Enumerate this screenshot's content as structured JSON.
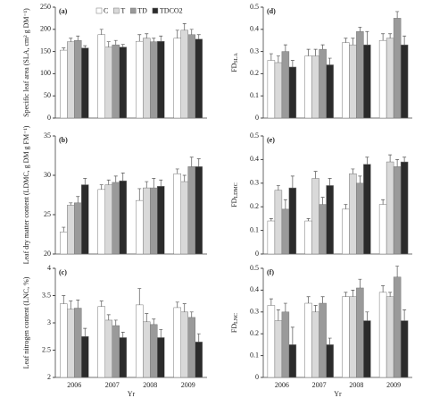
{
  "chart_data": [
    {
      "type": "bar",
      "label": "(a)",
      "ylabel": "Specific leaf area (SLA, cm² g DM⁻¹)",
      "legend": "top",
      "categories": [
        null,
        null,
        null,
        null
      ],
      "series": [
        {
          "name": "C",
          "color": "#ffffff",
          "values": [
            153,
            188,
            173,
            180
          ],
          "errors": [
            5,
            12,
            15,
            18
          ]
        },
        {
          "name": "T",
          "color": "#d9d9d9",
          "values": [
            172,
            160,
            180,
            198
          ],
          "errors": [
            8,
            12,
            10,
            15
          ]
        },
        {
          "name": "TD",
          "color": "#9a9a9a",
          "values": [
            175,
            165,
            172,
            188
          ],
          "errors": [
            10,
            10,
            8,
            12
          ]
        },
        {
          "name": "TDCO2",
          "color": "#2b2b2b",
          "values": [
            158,
            160,
            173,
            178
          ],
          "errors": [
            5,
            6,
            12,
            10
          ]
        }
      ],
      "ylim": [
        0,
        250
      ],
      "yticks": [
        0,
        50,
        100,
        150,
        200,
        250
      ]
    },
    {
      "type": "bar",
      "label": "(d)",
      "ylabel": "FD",
      "ylabel_subscript": "SLA",
      "categories": [
        null,
        null,
        null,
        null
      ],
      "series": [
        {
          "color": "#ffffff",
          "values": [
            0.26,
            0.28,
            0.34,
            0.35
          ],
          "errors": [
            0.03,
            0.03,
            0.02,
            0.03
          ]
        },
        {
          "color": "#d9d9d9",
          "values": [
            0.25,
            0.28,
            0.33,
            0.36
          ],
          "errors": [
            0.03,
            0.03,
            0.03,
            0.02
          ]
        },
        {
          "color": "#9a9a9a",
          "values": [
            0.3,
            0.31,
            0.39,
            0.45
          ],
          "errors": [
            0.03,
            0.02,
            0.02,
            0.03
          ]
        },
        {
          "color": "#2b2b2b",
          "values": [
            0.23,
            0.24,
            0.33,
            0.33
          ],
          "errors": [
            0.03,
            0.03,
            0.06,
            0.04
          ]
        }
      ],
      "ylim": [
        0,
        0.5
      ],
      "yticks": [
        0,
        0.1,
        0.2,
        0.3,
        0.4,
        0.5
      ]
    },
    {
      "type": "bar",
      "label": "(b)",
      "ylabel": "Leaf dry matter content (LDMC, g DM g FM⁻¹)",
      "categories": [
        null,
        null,
        null,
        null
      ],
      "series": [
        {
          "color": "#ffffff",
          "values": [
            22.8,
            28.2,
            26.8,
            30.2
          ],
          "errors": [
            0.6,
            0.6,
            1.5,
            0.6
          ]
        },
        {
          "color": "#d9d9d9",
          "values": [
            26.2,
            28.8,
            28.4,
            29.2
          ],
          "errors": [
            0.3,
            0.6,
            0.8,
            0.8
          ]
        },
        {
          "color": "#9a9a9a",
          "values": [
            26.5,
            29.1,
            28.4,
            31.1
          ],
          "errors": [
            0.8,
            0.8,
            1.2,
            1.2
          ]
        },
        {
          "color": "#2b2b2b",
          "values": [
            28.8,
            29.3,
            28.6,
            31.1
          ],
          "errors": [
            0.8,
            1,
            0.8,
            1
          ]
        }
      ],
      "ylim": [
        20,
        35
      ],
      "yticks": [
        20,
        25,
        30,
        35
      ]
    },
    {
      "type": "bar",
      "label": "(e)",
      "ylabel": "FD",
      "ylabel_subscript": "LDMC",
      "categories": [
        null,
        null,
        null,
        null
      ],
      "series": [
        {
          "color": "#ffffff",
          "values": [
            0.14,
            0.14,
            0.19,
            0.21
          ],
          "errors": [
            0.01,
            0.01,
            0.02,
            0.02
          ]
        },
        {
          "color": "#d9d9d9",
          "values": [
            0.27,
            0.32,
            0.34,
            0.39
          ],
          "errors": [
            0.02,
            0.03,
            0.02,
            0.03
          ]
        },
        {
          "color": "#9a9a9a",
          "values": [
            0.19,
            0.21,
            0.3,
            0.37
          ],
          "errors": [
            0.04,
            0.03,
            0.03,
            0.03
          ]
        },
        {
          "color": "#2b2b2b",
          "values": [
            0.28,
            0.29,
            0.38,
            0.39
          ],
          "errors": [
            0.05,
            0.03,
            0.03,
            0.02
          ]
        }
      ],
      "ylim": [
        0,
        0.5
      ],
      "yticks": [
        0,
        0.1,
        0.2,
        0.3,
        0.4,
        0.5
      ]
    },
    {
      "type": "bar",
      "label": "(c)",
      "ylabel": "Leaf nitrogen content (LNC, %)",
      "xlabel": "Yr",
      "categories": [
        "2006",
        "2007",
        "2008",
        "2009"
      ],
      "series": [
        {
          "color": "#ffffff",
          "values": [
            3.35,
            3.3,
            3.33,
            3.28
          ],
          "errors": [
            0.15,
            0.1,
            0.3,
            0.1
          ]
        },
        {
          "color": "#d9d9d9",
          "values": [
            3.25,
            3.05,
            3.02,
            3.2
          ],
          "errors": [
            0.15,
            0.1,
            0.15,
            0.15
          ]
        },
        {
          "color": "#9a9a9a",
          "values": [
            3.27,
            2.95,
            2.97,
            3.1
          ],
          "errors": [
            0.15,
            0.1,
            0.1,
            0.1
          ]
        },
        {
          "color": "#2b2b2b",
          "values": [
            2.75,
            2.73,
            2.73,
            2.65
          ],
          "errors": [
            0.15,
            0.1,
            0.15,
            0.15
          ]
        }
      ],
      "ylim": [
        2,
        4
      ],
      "yticks": [
        2,
        2.5,
        3,
        3.5,
        4
      ]
    },
    {
      "type": "bar",
      "label": "(f)",
      "ylabel": "FD",
      "ylabel_subscript": "LNC",
      "xlabel": "Yr",
      "categories": [
        "2006",
        "2007",
        "2008",
        "2009"
      ],
      "series": [
        {
          "color": "#ffffff",
          "values": [
            0.33,
            0.34,
            0.37,
            0.39
          ],
          "errors": [
            0.03,
            0.03,
            0.02,
            0.03
          ]
        },
        {
          "color": "#d9d9d9",
          "values": [
            0.26,
            0.3,
            0.37,
            0.37
          ],
          "errors": [
            0.05,
            0.03,
            0.03,
            0.02
          ]
        },
        {
          "color": "#9a9a9a",
          "values": [
            0.3,
            0.34,
            0.41,
            0.46
          ],
          "errors": [
            0.04,
            0.03,
            0.04,
            0.05
          ]
        },
        {
          "color": "#2b2b2b",
          "values": [
            0.15,
            0.15,
            0.26,
            0.26
          ],
          "errors": [
            0.08,
            0.03,
            0.04,
            0.05
          ]
        }
      ],
      "ylim": [
        0,
        0.5
      ],
      "yticks": [
        0,
        0.1,
        0.2,
        0.3,
        0.4,
        0.5
      ]
    }
  ]
}
